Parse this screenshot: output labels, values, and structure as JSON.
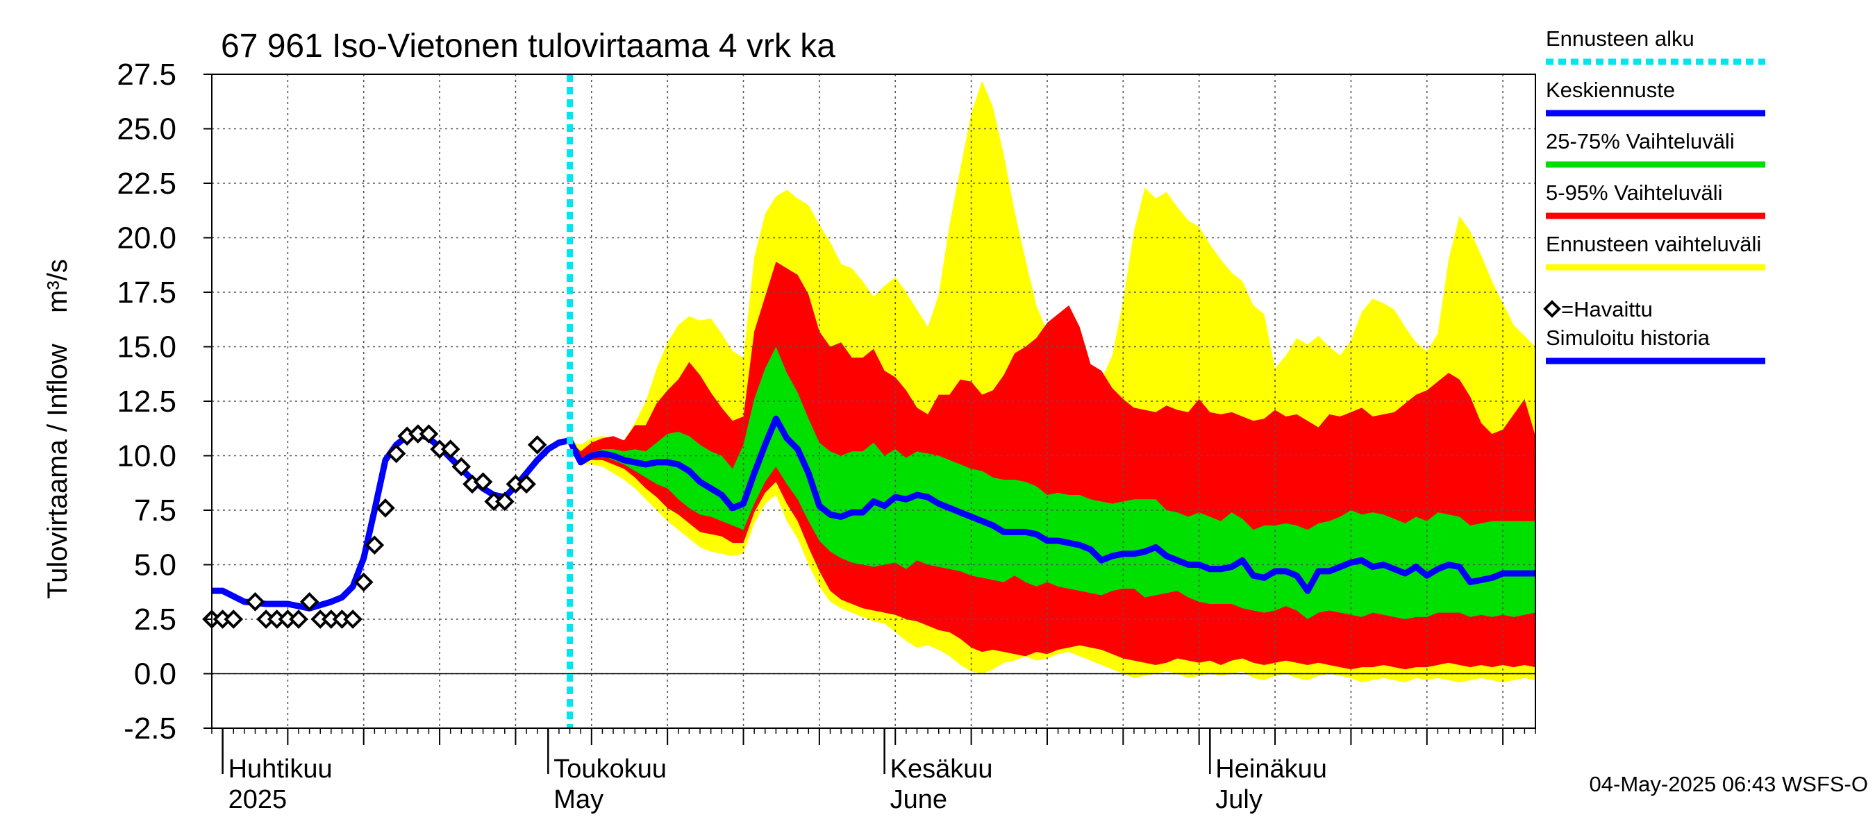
{
  "chart_data": {
    "type": "area",
    "title": "67 961 Iso-Vietonen tulovirtaama 4 vrk ka",
    "ylabel": "Tulovirtaama / Inflow    m³/s",
    "ylim": [
      -2.5,
      27.5
    ],
    "yticks": [
      "-2.5",
      "0.0",
      "2.5",
      "5.0",
      "7.5",
      "10.0",
      "12.5",
      "15.0",
      "17.5",
      "20.0",
      "22.5",
      "25.0",
      "27.5"
    ],
    "xlim": [
      "2025-03-31",
      "2025-07-31"
    ],
    "grid": true,
    "month_labels": [
      {
        "date": "2025-04-01",
        "fi": "Huhtikuu",
        "en": "2025"
      },
      {
        "date": "2025-05-01",
        "fi": "Toukokuu",
        "en": "May"
      },
      {
        "date": "2025-06-01",
        "fi": "Kesäkuu",
        "en": "June"
      },
      {
        "date": "2025-07-01",
        "fi": "Heinäkuu",
        "en": "July"
      }
    ],
    "forecast_start": "2025-05-03",
    "timestamp": "04-May-2025 06:43 WSFS-O",
    "legend": {
      "placement": "right",
      "entries": [
        {
          "label": "Ennusteen alku",
          "color": "#00e5ee",
          "style": "dotted"
        },
        {
          "label": "Keskiennuste",
          "color": "#0000ff",
          "style": "line"
        },
        {
          "label": "25-75% Vaihteluväli",
          "color": "#00e000",
          "style": "line"
        },
        {
          "label": "5-95% Vaihteluväli",
          "color": "#ff0000",
          "style": "line"
        },
        {
          "label": "Ennusteen vaihteluväli",
          "color": "#ffff00",
          "style": "line"
        },
        {
          "label": "=Havaittu",
          "color": "#000000",
          "style": "diamond"
        },
        {
          "label": "Simuloitu historia",
          "color": "#0000ff",
          "style": "line"
        }
      ]
    },
    "observed": {
      "x": [
        "2025-03-31",
        "2025-04-01",
        "2025-04-02",
        "2025-04-04",
        "2025-04-05",
        "2025-04-06",
        "2025-04-07",
        "2025-04-08",
        "2025-04-09",
        "2025-04-10",
        "2025-04-11",
        "2025-04-12",
        "2025-04-13",
        "2025-04-14",
        "2025-04-15",
        "2025-04-16",
        "2025-04-17",
        "2025-04-18",
        "2025-04-19",
        "2025-04-20",
        "2025-04-21",
        "2025-04-22",
        "2025-04-23",
        "2025-04-24",
        "2025-04-25",
        "2025-04-26",
        "2025-04-27",
        "2025-04-28",
        "2025-04-29",
        "2025-04-30"
      ],
      "y": [
        2.5,
        2.5,
        2.5,
        3.3,
        2.5,
        2.5,
        2.5,
        2.5,
        3.3,
        2.5,
        2.5,
        2.5,
        2.5,
        4.2,
        5.9,
        7.6,
        10.1,
        10.9,
        11.0,
        11.0,
        10.3,
        10.3,
        9.5,
        8.7,
        8.8,
        7.9,
        7.9,
        8.7,
        8.7,
        10.5
      ]
    },
    "simulated_history": {
      "x": [
        "2025-03-31",
        "2025-04-01",
        "2025-04-03",
        "2025-04-05",
        "2025-04-07",
        "2025-04-09",
        "2025-04-11",
        "2025-04-12",
        "2025-04-13",
        "2025-04-14",
        "2025-04-15",
        "2025-04-16",
        "2025-04-17",
        "2025-04-18",
        "2025-04-19",
        "2025-04-20",
        "2025-04-21",
        "2025-04-22",
        "2025-04-23",
        "2025-04-24",
        "2025-04-25",
        "2025-04-26",
        "2025-04-27",
        "2025-04-28",
        "2025-04-29",
        "2025-04-30",
        "2025-05-01",
        "2025-05-02",
        "2025-05-03"
      ],
      "y": [
        3.8,
        3.8,
        3.3,
        3.2,
        3.2,
        3.0,
        3.3,
        3.5,
        4.0,
        5.3,
        7.5,
        9.8,
        10.5,
        10.9,
        11.0,
        10.8,
        10.4,
        9.9,
        9.4,
        8.9,
        8.5,
        8.2,
        8.1,
        8.6,
        9.2,
        9.8,
        10.3,
        10.6,
        10.7
      ]
    },
    "forecast": {
      "x": [
        "2025-05-03",
        "2025-05-04",
        "2025-05-05",
        "2025-05-06",
        "2025-05-07",
        "2025-05-08",
        "2025-05-09",
        "2025-05-10",
        "2025-05-11",
        "2025-05-12",
        "2025-05-13",
        "2025-05-14",
        "2025-05-15",
        "2025-05-16",
        "2025-05-17",
        "2025-05-18",
        "2025-05-19",
        "2025-05-20",
        "2025-05-21",
        "2025-05-22",
        "2025-05-23",
        "2025-05-24",
        "2025-05-25",
        "2025-05-26",
        "2025-05-27",
        "2025-05-28",
        "2025-05-29",
        "2025-05-30",
        "2025-05-31",
        "2025-06-01",
        "2025-06-02",
        "2025-06-03",
        "2025-06-04",
        "2025-06-05",
        "2025-06-06",
        "2025-06-07",
        "2025-06-08",
        "2025-06-09",
        "2025-06-10",
        "2025-06-11",
        "2025-06-12",
        "2025-06-13",
        "2025-06-14",
        "2025-06-15",
        "2025-06-16",
        "2025-06-17",
        "2025-06-18",
        "2025-06-19",
        "2025-06-20",
        "2025-06-21",
        "2025-06-22",
        "2025-06-23",
        "2025-06-24",
        "2025-06-25",
        "2025-06-26",
        "2025-06-27",
        "2025-06-28",
        "2025-06-29",
        "2025-06-30",
        "2025-07-01",
        "2025-07-02",
        "2025-07-03",
        "2025-07-04",
        "2025-07-05",
        "2025-07-06",
        "2025-07-07",
        "2025-07-08",
        "2025-07-09",
        "2025-07-10",
        "2025-07-11",
        "2025-07-12",
        "2025-07-13",
        "2025-07-14",
        "2025-07-15",
        "2025-07-16",
        "2025-07-17",
        "2025-07-18",
        "2025-07-19",
        "2025-07-20",
        "2025-07-21",
        "2025-07-22",
        "2025-07-23",
        "2025-07-24",
        "2025-07-25",
        "2025-07-26",
        "2025-07-27",
        "2025-07-28",
        "2025-07-29",
        "2025-07-30",
        "2025-07-31"
      ],
      "mean": [
        10.7,
        9.7,
        10.0,
        10.1,
        10.0,
        9.8,
        9.7,
        9.6,
        9.7,
        9.7,
        9.6,
        9.3,
        8.8,
        8.5,
        8.2,
        7.6,
        7.8,
        9.2,
        10.5,
        11.7,
        10.8,
        10.3,
        9.2,
        7.7,
        7.3,
        7.2,
        7.4,
        7.4,
        7.9,
        7.7,
        8.1,
        8.0,
        8.2,
        8.1,
        7.8,
        7.6,
        7.4,
        7.2,
        7.0,
        6.8,
        6.5,
        6.5,
        6.5,
        6.4,
        6.1,
        6.1,
        6.0,
        5.9,
        5.7,
        5.2,
        5.4,
        5.5,
        5.5,
        5.6,
        5.8,
        5.4,
        5.2,
        5.0,
        5.0,
        4.8,
        4.8,
        4.9,
        5.2,
        4.5,
        4.4,
        4.7,
        4.7,
        4.5,
        3.8,
        4.7,
        4.7,
        4.9,
        5.1,
        5.2,
        4.9,
        5.0,
        4.8,
        4.6,
        4.9,
        4.5,
        4.8,
        5.0,
        4.9,
        4.2,
        4.3,
        4.4,
        4.6,
        4.6,
        4.6,
        4.6
      ],
      "p25": [
        10.7,
        9.7,
        9.9,
        10.0,
        9.8,
        9.6,
        9.3,
        9.0,
        8.7,
        8.5,
        8.0,
        7.6,
        7.3,
        7.2,
        7.0,
        6.8,
        6.6,
        7.8,
        8.8,
        9.5,
        8.7,
        8.0,
        7.0,
        6.1,
        5.6,
        5.3,
        5.1,
        5.0,
        4.9,
        5.0,
        5.1,
        4.8,
        5.2,
        5.0,
        4.9,
        4.8,
        4.7,
        4.5,
        4.4,
        4.3,
        4.2,
        4.5,
        4.2,
        4.0,
        4.2,
        4.0,
        3.9,
        3.8,
        3.7,
        3.6,
        3.8,
        3.9,
        3.9,
        3.5,
        3.6,
        3.7,
        3.8,
        3.5,
        3.3,
        3.2,
        3.2,
        3.2,
        3.0,
        2.9,
        2.8,
        2.9,
        3.1,
        2.9,
        2.5,
        2.8,
        2.9,
        2.8,
        2.7,
        2.6,
        2.8,
        2.7,
        2.6,
        2.5,
        2.6,
        2.6,
        2.8,
        2.8,
        2.8,
        2.6,
        2.7,
        2.6,
        2.7,
        2.6,
        2.7,
        2.8
      ],
      "p75": [
        10.7,
        9.8,
        10.1,
        10.3,
        10.3,
        10.2,
        10.3,
        10.2,
        10.6,
        11.0,
        11.1,
        10.9,
        10.5,
        10.2,
        10.0,
        9.4,
        10.5,
        12.6,
        14.0,
        15.0,
        13.8,
        12.9,
        11.7,
        10.6,
        10.2,
        10.0,
        10.2,
        10.2,
        10.6,
        10.0,
        10.3,
        9.9,
        10.2,
        10.1,
        10.0,
        9.8,
        9.6,
        9.4,
        9.3,
        9.0,
        8.9,
        8.9,
        8.8,
        8.6,
        8.2,
        8.3,
        8.2,
        8.2,
        8.0,
        7.9,
        7.8,
        7.9,
        8.0,
        8.0,
        8.0,
        7.5,
        7.4,
        7.2,
        7.4,
        7.2,
        7.0,
        7.4,
        7.1,
        6.6,
        6.8,
        6.8,
        6.9,
        6.8,
        6.6,
        6.9,
        7.0,
        7.2,
        7.5,
        7.3,
        7.4,
        7.3,
        7.1,
        6.9,
        7.2,
        7.0,
        7.4,
        7.3,
        7.2,
        6.8,
        6.9,
        7.0,
        7.0,
        7.0,
        7.0,
        7.0
      ],
      "p5": [
        10.7,
        9.7,
        9.8,
        9.8,
        9.6,
        9.4,
        9.0,
        8.5,
        8.1,
        7.6,
        7.3,
        6.9,
        6.5,
        6.4,
        6.3,
        6.0,
        6.0,
        7.4,
        8.3,
        8.8,
        7.8,
        7.0,
        5.8,
        4.7,
        3.8,
        3.4,
        3.2,
        3.0,
        2.9,
        2.8,
        2.7,
        2.5,
        2.4,
        2.2,
        2.0,
        1.9,
        1.6,
        1.2,
        1.0,
        1.1,
        1.0,
        0.9,
        0.8,
        1.0,
        0.9,
        1.1,
        1.2,
        1.3,
        1.2,
        1.1,
        0.9,
        0.7,
        0.6,
        0.5,
        0.4,
        0.5,
        0.7,
        0.6,
        0.5,
        0.6,
        0.4,
        0.6,
        0.7,
        0.5,
        0.4,
        0.5,
        0.6,
        0.5,
        0.4,
        0.5,
        0.4,
        0.3,
        0.2,
        0.3,
        0.3,
        0.4,
        0.3,
        0.2,
        0.3,
        0.3,
        0.4,
        0.5,
        0.4,
        0.3,
        0.4,
        0.3,
        0.4,
        0.3,
        0.4,
        0.3
      ],
      "p95": [
        10.7,
        10.2,
        10.6,
        10.8,
        10.9,
        10.7,
        11.4,
        11.4,
        12.4,
        13.0,
        13.5,
        14.3,
        13.7,
        12.9,
        12.2,
        11.6,
        11.8,
        15.7,
        17.3,
        18.9,
        18.6,
        18.3,
        17.4,
        15.7,
        15.0,
        15.2,
        14.5,
        14.5,
        14.9,
        13.9,
        13.6,
        13.0,
        12.2,
        11.9,
        12.8,
        12.8,
        13.5,
        13.4,
        12.8,
        13.0,
        13.7,
        14.7,
        15.0,
        15.4,
        16.1,
        16.5,
        16.9,
        15.9,
        14.2,
        13.9,
        13.1,
        12.6,
        12.2,
        12.1,
        12.0,
        12.3,
        12.1,
        12.0,
        12.6,
        12.0,
        11.9,
        12.0,
        11.8,
        11.6,
        11.7,
        12.1,
        11.8,
        11.9,
        11.6,
        11.3,
        11.9,
        11.8,
        12.0,
        12.2,
        11.8,
        11.9,
        12.0,
        12.4,
        12.8,
        13.0,
        13.4,
        13.8,
        13.5,
        12.7,
        11.5,
        11.0,
        11.2,
        11.9,
        12.6,
        10.9
      ],
      "max": [
        10.7,
        10.5,
        10.8,
        10.9,
        10.8,
        10.7,
        11.5,
        12.5,
        14.0,
        15.2,
        16.0,
        16.4,
        16.2,
        16.3,
        15.6,
        14.8,
        14.5,
        19.1,
        21.1,
        21.9,
        22.2,
        21.8,
        21.5,
        20.6,
        19.8,
        18.8,
        18.6,
        18.0,
        17.3,
        17.8,
        18.2,
        17.5,
        16.7,
        15.9,
        17.4,
        20.6,
        23.2,
        25.7,
        27.2,
        26.0,
        23.8,
        21.2,
        19.0,
        16.9,
        15.7,
        14.8,
        14.4,
        13.6,
        13.0,
        13.5,
        14.6,
        17.1,
        20.3,
        22.3,
        21.8,
        22.1,
        21.4,
        20.8,
        20.5,
        19.7,
        19.0,
        18.4,
        18.0,
        16.9,
        16.5,
        14.0,
        14.6,
        15.4,
        15.1,
        15.5,
        15.0,
        14.6,
        15.3,
        16.6,
        17.2,
        17.0,
        16.7,
        15.9,
        15.2,
        14.8,
        15.6,
        19.0,
        21.0,
        20.3,
        19.2,
        18.0,
        17.0,
        16.0,
        15.5,
        15.0
      ],
      "min": [
        10.7,
        9.6,
        9.6,
        9.5,
        9.2,
        8.9,
        8.5,
        8.0,
        7.5,
        7.0,
        6.6,
        6.2,
        5.8,
        5.6,
        5.5,
        5.4,
        5.5,
        6.9,
        7.8,
        8.2,
        7.0,
        6.2,
        5.0,
        4.0,
        3.3,
        3.0,
        2.8,
        2.6,
        2.4,
        2.3,
        1.9,
        1.5,
        1.2,
        1.3,
        1.1,
        0.8,
        0.4,
        0.1,
        0.0,
        0.2,
        0.5,
        0.6,
        0.8,
        0.6,
        0.7,
        0.9,
        1.0,
        0.8,
        0.6,
        0.4,
        0.2,
        0.0,
        -0.2,
        -0.1,
        0.0,
        0.1,
        0.0,
        -0.2,
        -0.1,
        0.0,
        -0.1,
        0.0,
        0.1,
        -0.2,
        -0.3,
        -0.1,
        0.0,
        -0.2,
        -0.3,
        -0.1,
        0.0,
        -0.1,
        -0.2,
        -0.4,
        -0.3,
        -0.2,
        -0.3,
        -0.4,
        -0.2,
        -0.3,
        -0.2,
        -0.3,
        -0.4,
        -0.3,
        -0.2,
        -0.3,
        -0.4,
        -0.3,
        -0.2,
        -0.3
      ]
    }
  }
}
